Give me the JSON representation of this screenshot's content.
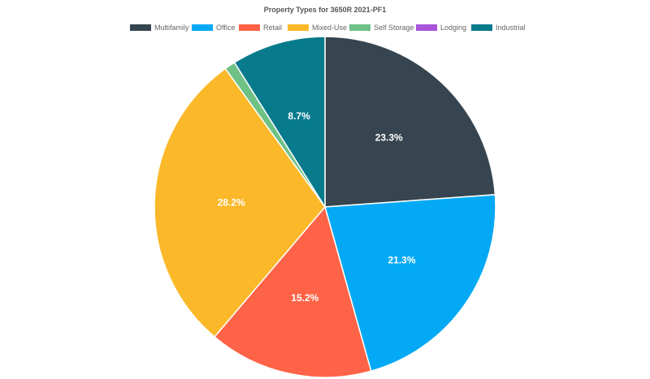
{
  "chart_data": {
    "type": "pie",
    "title": "Property Types for 3650R 2021-PF1",
    "legend_position": "top",
    "slices": [
      {
        "name": "Multifamily",
        "value": 23.3,
        "label": "23.3%",
        "color": "#36454f"
      },
      {
        "name": "Office",
        "value": 21.3,
        "label": "21.3%",
        "color": "#03a9f4"
      },
      {
        "name": "Retail",
        "value": 15.2,
        "label": "15.2%",
        "color": "#ff6347"
      },
      {
        "name": "Mixed-Use",
        "value": 28.2,
        "label": "28.2%",
        "color": "#fbb829"
      },
      {
        "name": "Self Storage",
        "value": 1.0,
        "label": "",
        "color": "#6fc186"
      },
      {
        "name": "Lodging",
        "value": 0.0,
        "label": "",
        "color": "#a855db"
      },
      {
        "name": "Industrial",
        "value": 8.7,
        "label": "8.7%",
        "color": "#077a8c"
      }
    ]
  }
}
